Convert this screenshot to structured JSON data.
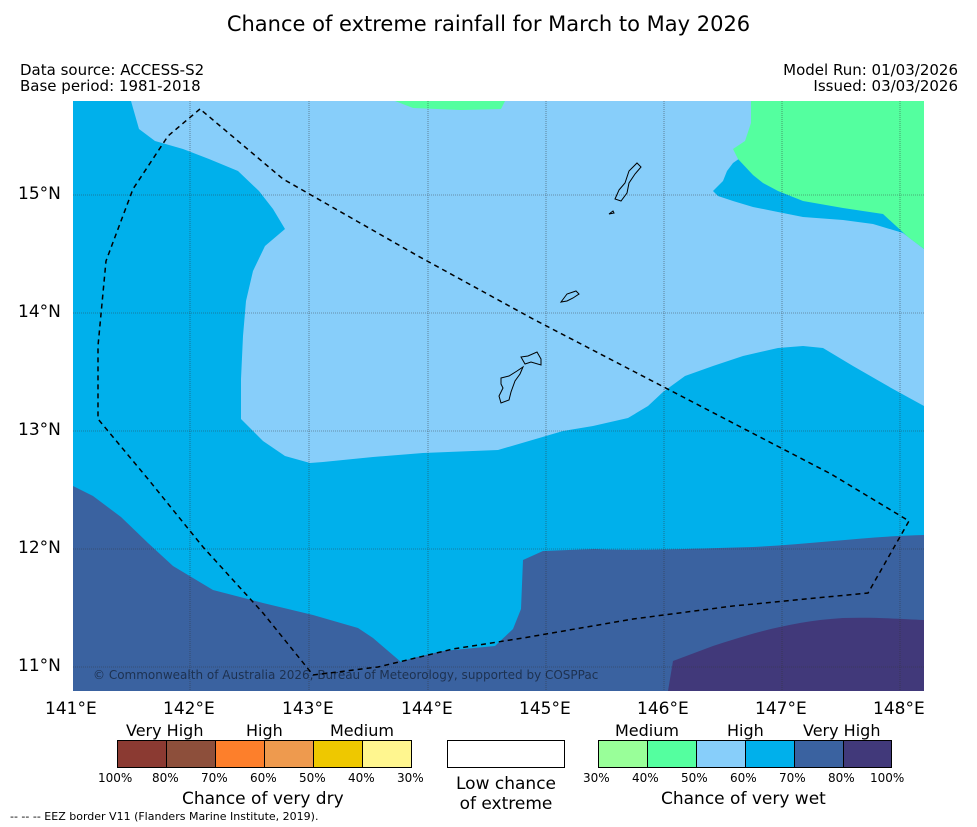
{
  "title": "Chance of extreme rainfall for March to May 2026",
  "header": {
    "data_source": "Data source: ACCESS-S2",
    "base_period": "Base period: 1981-2018",
    "model_run": "Model Run: 01/03/2026",
    "issued": "Issued: 03/03/2026"
  },
  "map": {
    "lat_labels": [
      "15°N",
      "14°N",
      "13°N",
      "12°N",
      "11°N"
    ],
    "lon_labels": [
      "141°E",
      "142°E",
      "143°E",
      "144°E",
      "145°E",
      "146°E",
      "147°E",
      "148°E"
    ],
    "copyright": "© Commonwealth of Australia 2026, Bureau of Meteorology, supported by COSPPac"
  },
  "legend": {
    "dry": {
      "caption": "Chance of very dry",
      "headers": [
        "Very High",
        "High",
        "Medium"
      ],
      "colors": [
        "#8b3a32",
        "#8d4f3b",
        "#fd7f2b",
        "#ee9a4e",
        "#eec800",
        "#fff68f"
      ],
      "ticks": [
        "100%",
        "80%",
        "70%",
        "60%",
        "50%",
        "40%",
        "30%"
      ]
    },
    "low": {
      "caption_line1": "Low chance",
      "caption_line2": "of extreme"
    },
    "wet": {
      "caption": "Chance of very wet",
      "headers": [
        "Medium",
        "High",
        "Very High"
      ],
      "colors": [
        "#99ff99",
        "#54ff9f",
        "#87cefa",
        "#00b0eb",
        "#3a62a0",
        "#41397a"
      ],
      "ticks": [
        "30%",
        "40%",
        "50%",
        "60%",
        "70%",
        "80%",
        "100%"
      ]
    }
  },
  "footnote": "--  --  -- EEZ border V11 (Flanders Marine Institute, 2019)."
}
